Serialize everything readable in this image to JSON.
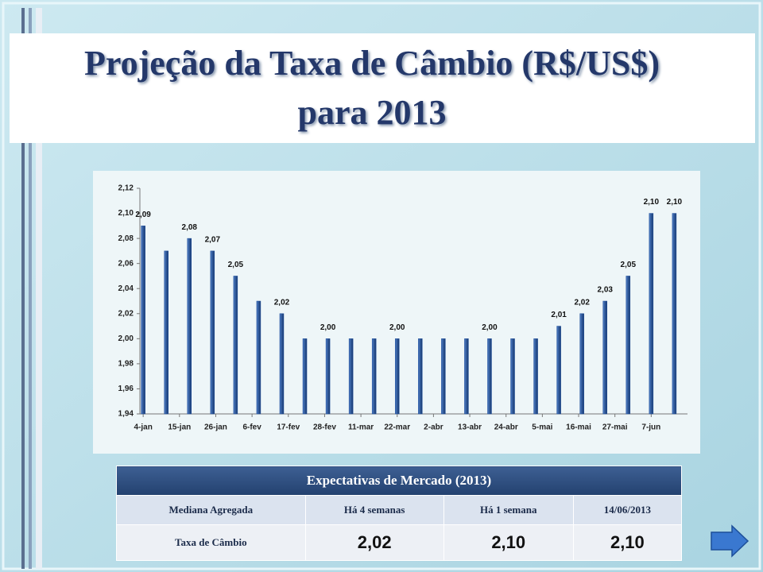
{
  "slide": {
    "title": [
      "Projeção da Taxa de Câmbio (R$/US$)",
      "para 2013"
    ]
  },
  "chart_data": {
    "type": "bar",
    "x": [
      0,
      7,
      14,
      21,
      28,
      35,
      42,
      49,
      56,
      63,
      70,
      77,
      84,
      91,
      98,
      105,
      112,
      119,
      126,
      133,
      140,
      147,
      154,
      161
    ],
    "values": [
      2.09,
      2.07,
      2.08,
      2.07,
      2.05,
      2.03,
      2.02,
      2.0,
      2.0,
      2.0,
      2.0,
      2.0,
      2.0,
      2.0,
      2.0,
      2.0,
      2.0,
      2.0,
      2.01,
      2.02,
      2.03,
      2.05,
      2.1,
      2.1
    ],
    "value_labels": [
      "2,09",
      null,
      "2,08",
      "2,07",
      "2,05",
      null,
      "2,02",
      null,
      "2,00",
      null,
      null,
      "2,00",
      null,
      null,
      null,
      "2,00",
      null,
      null,
      "2,01",
      "2,02",
      "2,03",
      "2,05",
      "2,10",
      "2,10"
    ],
    "color": "#1f4e9a",
    "xlim": [
      -1,
      165
    ],
    "xticks": [
      {
        "value": 0,
        "label": "4-jan"
      },
      {
        "value": 11,
        "label": "15-jan"
      },
      {
        "value": 22,
        "label": "26-jan"
      },
      {
        "value": 33,
        "label": "6-fev"
      },
      {
        "value": 44,
        "label": "17-fev"
      },
      {
        "value": 55,
        "label": "28-fev"
      },
      {
        "value": 66,
        "label": "11-mar"
      },
      {
        "value": 77,
        "label": "22-mar"
      },
      {
        "value": 88,
        "label": "2-abr"
      },
      {
        "value": 99,
        "label": "13-abr"
      },
      {
        "value": 110,
        "label": "24-abr"
      },
      {
        "value": 121,
        "label": "5-mai"
      },
      {
        "value": 132,
        "label": "16-mai"
      },
      {
        "value": 143,
        "label": "27-mai"
      },
      {
        "value": 154,
        "label": "7-jun"
      }
    ],
    "ylim": [
      1.94,
      2.12
    ],
    "yticks": [
      {
        "value": 1.94,
        "label": "1,94"
      },
      {
        "value": 1.96,
        "label": "1,96"
      },
      {
        "value": 1.98,
        "label": "1,98"
      },
      {
        "value": 2.0,
        "label": "2,00"
      },
      {
        "value": 2.02,
        "label": "2,02"
      },
      {
        "value": 2.04,
        "label": "2,04"
      },
      {
        "value": 2.06,
        "label": "2,06"
      },
      {
        "value": 2.08,
        "label": "2,08"
      },
      {
        "value": 2.1,
        "label": "2,10"
      },
      {
        "value": 2.12,
        "label": "2,12"
      }
    ]
  },
  "table": {
    "title": "Expectativas de Mercado (2013)",
    "header": [
      "Mediana Agregada",
      "Há 4 semanas",
      "Há 1 semana",
      "14/06/2013"
    ],
    "rows": [
      [
        "Taxa de Câmbio",
        "2,02",
        "2,10",
        "2,10"
      ]
    ]
  }
}
